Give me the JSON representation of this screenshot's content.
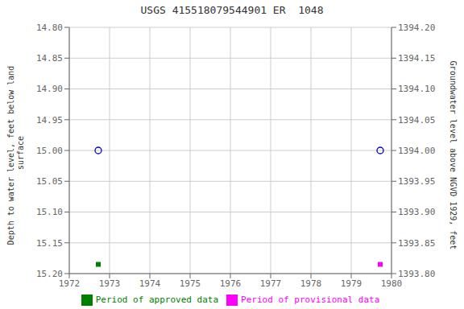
{
  "chart_data": {
    "type": "scatter",
    "title": "USGS 415518079544901 ER  1048",
    "ylabel": "Depth to water level, feet below land\n surface",
    "y2label": "Groundwater level above NGVD 1929, feet",
    "xlim": [
      1972,
      1980
    ],
    "xticks": [
      1972,
      1973,
      1974,
      1975,
      1976,
      1977,
      1978,
      1979,
      1980
    ],
    "ylim": [
      15.2,
      14.8
    ],
    "yticks": [
      {
        "value": 14.8,
        "label": "14.80"
      },
      14.85,
      {
        "value": 14.9,
        "label": "14.90"
      },
      14.95,
      {
        "value": 15.0,
        "label": "15.00"
      },
      15.05,
      {
        "value": 15.1,
        "label": "15.10"
      },
      15.15,
      {
        "value": 15.2,
        "label": "15.20"
      }
    ],
    "y2lim": [
      1393.8,
      1394.2
    ],
    "y2ticks": [
      {
        "value": 1394.2,
        "label": "1394.20"
      },
      1394.15,
      {
        "value": 1394.1,
        "label": "1394.10"
      },
      1394.05,
      {
        "value": 1394.0,
        "label": "1394.00"
      },
      1393.95,
      {
        "value": 1393.9,
        "label": "1393.90"
      },
      1393.85,
      {
        "value": 1393.8,
        "label": "1393.80"
      }
    ],
    "grid": true,
    "legend": "bottom",
    "series": [
      {
        "x": [
          1972.72
        ],
        "values": [
          15.0
        ],
        "color": "#0000cc",
        "marker": "open_circle"
      },
      {
        "name": "Period of approved data",
        "x": [
          1972.72
        ],
        "values": [
          15.185
        ],
        "color": "#008000",
        "marker": "square"
      },
      {
        "x": [
          1979.72
        ],
        "values": [
          15.0
        ],
        "color": "#0000cc",
        "marker": "open_circle"
      },
      {
        "name": "Period of provisional data",
        "x": [
          1979.72
        ],
        "values": [
          15.185
        ],
        "color": "#ff00ff",
        "marker": "square"
      }
    ]
  }
}
